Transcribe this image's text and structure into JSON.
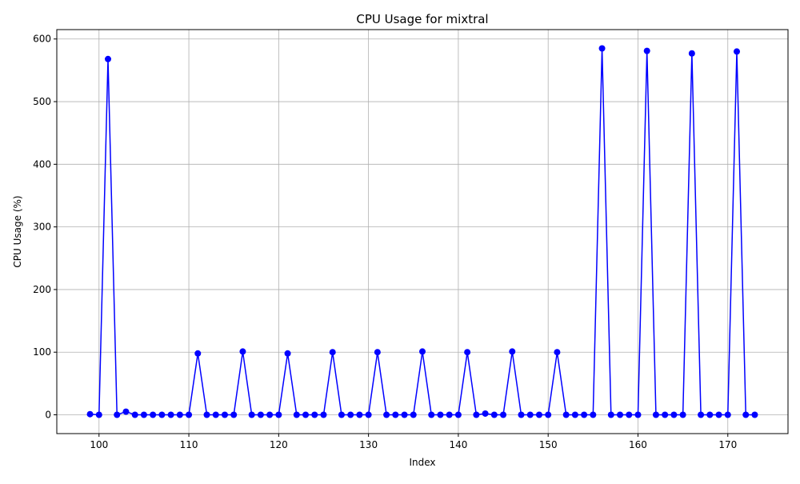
{
  "chart_data": {
    "type": "line",
    "title": "CPU Usage for mixtral",
    "xlabel": "Index",
    "ylabel": "CPU Usage (%)",
    "xlim": [
      95.3,
      176.7
    ],
    "ylim": [
      -30,
      615
    ],
    "xticks": [
      100,
      110,
      120,
      130,
      140,
      150,
      160,
      170
    ],
    "yticks": [
      0,
      100,
      200,
      300,
      400,
      500,
      600
    ],
    "grid": true,
    "series": [
      {
        "color": "#0000ff",
        "marker": "circle",
        "x": [
          99,
          100,
          101,
          102,
          103,
          104,
          105,
          106,
          107,
          108,
          109,
          110,
          111,
          112,
          113,
          114,
          115,
          116,
          117,
          118,
          119,
          120,
          121,
          122,
          123,
          124,
          125,
          126,
          127,
          128,
          129,
          130,
          131,
          132,
          133,
          134,
          135,
          136,
          137,
          138,
          139,
          140,
          141,
          142,
          143,
          144,
          145,
          146,
          147,
          148,
          149,
          150,
          151,
          152,
          153,
          154,
          155,
          156,
          157,
          158,
          159,
          160,
          161,
          162,
          163,
          164,
          165,
          166,
          167,
          168,
          169,
          170,
          171,
          172,
          173
        ],
        "y": [
          1,
          0,
          568,
          0,
          5,
          0,
          0,
          0,
          0,
          0,
          0,
          0,
          98,
          0,
          0,
          0,
          0,
          101,
          0,
          0,
          0,
          0,
          98,
          0,
          0,
          0,
          0,
          100,
          0,
          0,
          0,
          0,
          100,
          0,
          0,
          0,
          0,
          101,
          0,
          0,
          0,
          0,
          100,
          0,
          2,
          0,
          0,
          101,
          0,
          0,
          0,
          0,
          100,
          0,
          0,
          0,
          0,
          585,
          0,
          0,
          0,
          0,
          581,
          0,
          0,
          0,
          0,
          577,
          0,
          0,
          0,
          0,
          580,
          0,
          0
        ]
      }
    ]
  }
}
